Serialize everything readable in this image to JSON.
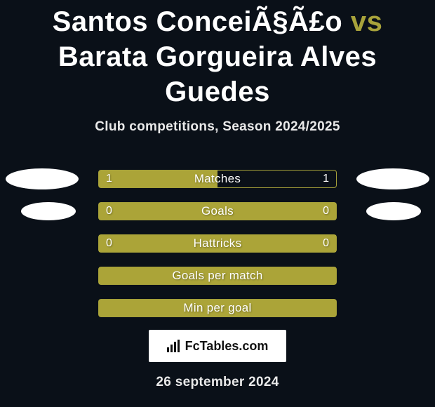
{
  "title": {
    "player1": "Santos ConceiÃ§Ã£o",
    "vs": "vs",
    "player2": "Barata Gorgueira Alves Guedes"
  },
  "subtitle": "Club competitions, Season 2024/2025",
  "date": "26 september 2024",
  "logo_text": "FcTables.com",
  "colors": {
    "bg": "#0a1018",
    "accent": "#aba438",
    "accent_border": "#a49f39",
    "text": "#ffffff",
    "subtitle_text": "#e9e9e9",
    "logo_bg": "#ffffff",
    "logo_text": "#111111"
  },
  "stat_bars": [
    {
      "label": "Matches",
      "left_value": "1",
      "right_value": "1",
      "fill_pct": 50,
      "left_blob": "large",
      "right_blob": "large"
    },
    {
      "label": "Goals",
      "left_value": "0",
      "right_value": "0",
      "fill_pct": 100,
      "left_blob": "small",
      "right_blob": "small"
    },
    {
      "label": "Hattricks",
      "left_value": "0",
      "right_value": "0",
      "fill_pct": 100,
      "left_blob": "none",
      "right_blob": "none"
    },
    {
      "label": "Goals per match",
      "left_value": "",
      "right_value": "",
      "fill_pct": 100,
      "left_blob": "none",
      "right_blob": "none"
    },
    {
      "label": "Min per goal",
      "left_value": "",
      "right_value": "",
      "fill_pct": 100,
      "left_blob": "none",
      "right_blob": "none"
    }
  ]
}
